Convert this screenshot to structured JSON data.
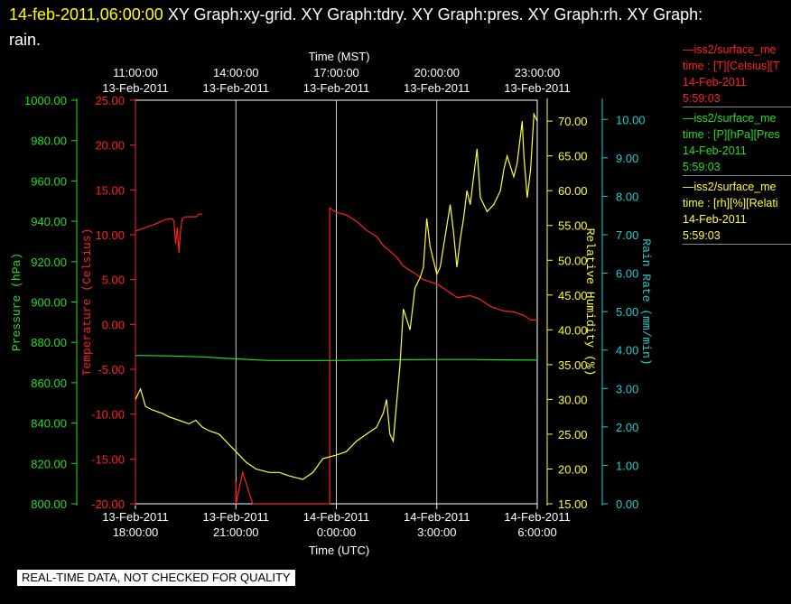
{
  "header": {
    "timestamp": "14-feb-2011,06:00:00",
    "graphs": "XY Graph:xy-grid.  XY Graph:tdry.  XY Graph:pres.  XY Graph:rh.  XY Graph:",
    "graphs_line2": "rain."
  },
  "legend": [
    {
      "series": "—iss2/surface_me",
      "var": "time : [T][Celsius][T",
      "date": "14-Feb-2011",
      "time": "5:59:03",
      "color": "#ff2020"
    },
    {
      "series": "—iss2/surface_me",
      "var": "time : [P][hPa][Pres",
      "date": "14-Feb-2011",
      "time": "5:59:03",
      "color": "#22dd22"
    },
    {
      "series": "—iss2/surface_me",
      "var": "time : [rh][%][Relati",
      "date": "14-Feb-2011",
      "time": "5:59:03",
      "color": "#ffff33"
    }
  ],
  "footer": {
    "qc_notice": "REAL-TIME DATA, NOT CHECKED FOR QUALITY"
  },
  "chart_data": {
    "type": "line",
    "title": "",
    "top_axis": {
      "label": "Time (MST)",
      "ticks": [
        {
          "time": "11:00:00",
          "date": "13-Feb-2011"
        },
        {
          "time": "14:00:00",
          "date": "13-Feb-2011"
        },
        {
          "time": "17:00:00",
          "date": "13-Feb-2011"
        },
        {
          "time": "20:00:00",
          "date": "13-Feb-2011"
        },
        {
          "time": "23:00:00",
          "date": "13-Feb-2011"
        }
      ]
    },
    "bottom_axis": {
      "label": "Time (UTC)",
      "xlim": [
        "2011-02-13 18:00",
        "2011-02-14 06:00"
      ],
      "ticks": [
        {
          "date": "13-Feb-2011",
          "time": "18:00:00"
        },
        {
          "date": "13-Feb-2011",
          "time": "21:00:00"
        },
        {
          "date": "14-Feb-2011",
          "time": "0:00:00"
        },
        {
          "date": "14-Feb-2011",
          "time": "3:00:00"
        },
        {
          "date": "14-Feb-2011",
          "time": "6:00:00"
        }
      ],
      "tick_hours": [
        0,
        3,
        6,
        9,
        12
      ]
    },
    "y_axes": [
      {
        "id": "pres",
        "label": "Pressure (hPa)",
        "color": "#22dd22",
        "ylim": [
          800,
          1000
        ],
        "ticks": [
          "800.00",
          "820.00",
          "840.00",
          "860.00",
          "880.00",
          "900.00",
          "920.00",
          "940.00",
          "960.00",
          "980.00",
          "1000.00"
        ]
      },
      {
        "id": "tdry",
        "label": "Temperature (Celsius)",
        "color": "#ff2020",
        "ylim": [
          -20,
          25
        ],
        "ticks": [
          "-20.00",
          "-15.00",
          "-10.00",
          "-5.00",
          "0.00",
          "5.00",
          "10.00",
          "15.00",
          "20.00",
          "25.00"
        ]
      },
      {
        "id": "rh",
        "label": "Relative Humidity (%)",
        "color": "#ffff33",
        "ylim": [
          15,
          73
        ],
        "ticks": [
          "15.00",
          "20.00",
          "25.00",
          "30.00",
          "35.00",
          "40.00",
          "45.00",
          "50.00",
          "55.00",
          "60.00",
          "65.00",
          "70.00"
        ]
      },
      {
        "id": "rain",
        "label": "Rain Rate (mm/min)",
        "color": "#22cccc",
        "ylim": [
          0,
          10.5
        ],
        "ticks": [
          "0.00",
          "1.00",
          "2.00",
          "3.00",
          "4.00",
          "5.00",
          "6.00",
          "7.00",
          "8.00",
          "9.00",
          "10.00"
        ]
      }
    ],
    "series": [
      {
        "name": "iss2/surface_me",
        "axis": "tdry",
        "color": "#ff2020",
        "x_hours": [
          0,
          0.3,
          0.6,
          0.9,
          1.1,
          1.15,
          1.2,
          1.25,
          1.3,
          1.35,
          1.4,
          1.5,
          1.8,
          1.9,
          2.0,
          2.05,
          2.1,
          2.15,
          2.2,
          2.3,
          2.5,
          2.8,
          3.0,
          3.0,
          3.2,
          3.5,
          5.8,
          5.8,
          6.0,
          6.3,
          6.6,
          6.9,
          7.2,
          7.4,
          7.6,
          7.8,
          8.0,
          8.3,
          8.6,
          9.0,
          9.3,
          9.6,
          10.0,
          10.3,
          10.6,
          11.0,
          11.3,
          11.6,
          11.8,
          12.0
        ],
        "values": [
          10.4,
          10.8,
          11.2,
          11.7,
          11.8,
          11.5,
          9.0,
          10.8,
          8.0,
          10.6,
          11.8,
          12.0,
          12.0,
          12.3,
          12.3,
          null,
          null,
          null,
          null,
          null,
          null,
          null,
          -17.5,
          -20,
          -16.5,
          -20,
          -20,
          13.0,
          12.5,
          12.2,
          11.5,
          10.5,
          9.8,
          8.8,
          8.2,
          7.5,
          6.5,
          5.8,
          5.0,
          4.5,
          3.8,
          3.0,
          3.2,
          2.8,
          2.0,
          1.5,
          1.4,
          1.0,
          0.5,
          0.5
        ]
      },
      {
        "name": "iss2/surface_me",
        "axis": "pres",
        "color": "#22dd22",
        "x_hours": [
          0,
          1,
          2,
          3,
          4,
          5,
          6,
          7,
          8,
          9,
          10,
          11,
          12
        ],
        "values": [
          873.5,
          873.3,
          872.8,
          871.8,
          871.0,
          871.0,
          871.0,
          871.2,
          871.4,
          871.5,
          871.5,
          871.3,
          871.2
        ]
      },
      {
        "name": "iss2/surface_me",
        "axis": "rh",
        "color": "#ffff33",
        "x_hours": [
          0,
          0.15,
          0.3,
          0.5,
          0.8,
          1.0,
          1.3,
          1.6,
          1.8,
          2.0,
          2.2,
          2.5,
          2.8,
          3.0,
          3.3,
          3.6,
          4.0,
          4.3,
          4.6,
          5.0,
          5.3,
          5.6,
          6.0,
          6.3,
          6.6,
          6.9,
          7.2,
          7.4,
          7.5,
          7.6,
          7.7,
          7.9,
          8.0,
          8.2,
          8.35,
          8.5,
          8.6,
          8.7,
          8.8,
          8.9,
          9.0,
          9.1,
          9.2,
          9.3,
          9.4,
          9.5,
          9.6,
          9.7,
          9.8,
          9.9,
          10.0,
          10.1,
          10.2,
          10.3,
          10.5,
          10.7,
          10.9,
          11.0,
          11.1,
          11.3,
          11.4,
          11.5,
          11.55,
          11.6,
          11.7,
          11.8,
          11.9,
          12.0
        ],
        "values": [
          30,
          31.5,
          29,
          28.5,
          28,
          27.5,
          27,
          26.5,
          27,
          26,
          25.5,
          25,
          23.5,
          22.5,
          21,
          20,
          19.5,
          19.5,
          19,
          18.5,
          19.5,
          21.5,
          22,
          22.5,
          24,
          25,
          26,
          28,
          30,
          25,
          24,
          35,
          43,
          40,
          46,
          47.5,
          49,
          56,
          52,
          50,
          48,
          49,
          52,
          55,
          58,
          54,
          49,
          53,
          56,
          60,
          58,
          62,
          66,
          59,
          57,
          58,
          60,
          63,
          65,
          62,
          64,
          68,
          70,
          65,
          59,
          63,
          71,
          70
        ]
      }
    ]
  }
}
